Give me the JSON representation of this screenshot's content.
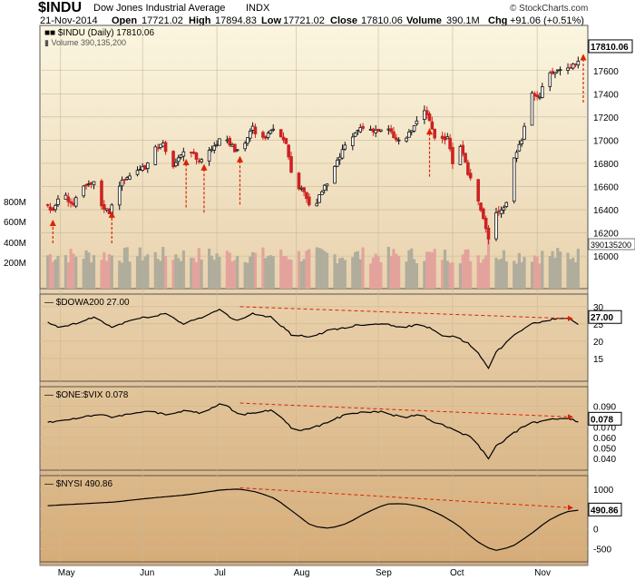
{
  "header": {
    "symbol": "$INDU",
    "name": "Dow Jones Industrial Average",
    "exchange": "INDX",
    "date": "21-Nov-2014",
    "open_label": "Open",
    "open": "17721.02",
    "high_label": "High",
    "high": "17894.83",
    "low_label": "Low",
    "low": "17721.02",
    "close_label": "Close",
    "close": "17810.06",
    "volume_label": "Volume",
    "volume": "390.1M",
    "chg_label": "Chg",
    "chg": "+91.06 (+0.51%)",
    "brand": "© StockCharts.com"
  },
  "colors": {
    "up": "#111111",
    "down": "#cc2222",
    "vol_up": "#b0ad9c",
    "vol_down": "#e3a39c",
    "arrow": "#dd2200",
    "panel_top": "#fbf6e0",
    "panel_bottom": "#d6ac78"
  },
  "chart_data": [
    {
      "type": "candlestick",
      "legend_label": "$INDU (Daily) 17810.06",
      "volume_legend": "Volume 390,135,200",
      "last_value_label": "17810.06",
      "last_volume_label": "390135200",
      "ylim": [
        15860,
        17880
      ],
      "y_ticks": [
        16000,
        16200,
        16400,
        16600,
        16800,
        17000,
        17200,
        17400,
        17600
      ],
      "volume_ticks": [
        "200M",
        "400M",
        "600M",
        "800M"
      ],
      "x_month_labels": [
        "May",
        "Jun",
        "Jul",
        "Aug",
        "Sep",
        "Oct",
        "Nov"
      ],
      "anchors": [
        [
          "Apr 24",
          16500
        ],
        [
          "Apr 28",
          16380
        ],
        [
          "May 1",
          16560
        ],
        [
          "May 6",
          16440
        ],
        [
          "May 9",
          16580
        ],
        [
          "May 14",
          16630
        ],
        [
          "May 16",
          16460
        ],
        [
          "May 20",
          16380
        ],
        [
          "May 23",
          16600
        ],
        [
          "May 29",
          16720
        ],
        [
          "Jun 3",
          16760
        ],
        [
          "Jun 6",
          16930
        ],
        [
          "Jun 10",
          16960
        ],
        [
          "Jun 13",
          16760
        ],
        [
          "Jun 18",
          16880
        ],
        [
          "Jun 20",
          16930
        ],
        [
          "Jun 24",
          16820
        ],
        [
          "Jun 26",
          16860
        ],
        [
          "Jul 1",
          16980
        ],
        [
          "Jul 3",
          17070
        ],
        [
          "Jul 8",
          16910
        ],
        [
          "Jul 11",
          16940
        ],
        [
          "Jul 15",
          17110
        ],
        [
          "Jul 17",
          16980
        ],
        [
          "Jul 21",
          17050
        ],
        [
          "Jul 24",
          17090
        ],
        [
          "Jul 28",
          16990
        ],
        [
          "Jul 31",
          16560
        ],
        [
          "Aug 4",
          16570
        ],
        [
          "Aug 7",
          16370
        ],
        [
          "Aug 11",
          16560
        ],
        [
          "Aug 14",
          16660
        ],
        [
          "Aug 19",
          16910
        ],
        [
          "Aug 22",
          17000
        ],
        [
          "Aug 26",
          17110
        ],
        [
          "Aug 29",
          17100
        ],
        [
          "Sep 3",
          17080
        ],
        [
          "Sep 5",
          17120
        ],
        [
          "Sep 9",
          17000
        ],
        [
          "Sep 12",
          16990
        ],
        [
          "Sep 16",
          17120
        ],
        [
          "Sep 19",
          17280
        ],
        [
          "Sep 22",
          17170
        ],
        [
          "Sep 25",
          16950
        ],
        [
          "Sep 29",
          17040
        ],
        [
          "Oct 1",
          16800
        ],
        [
          "Oct 3",
          17000
        ],
        [
          "Oct 7",
          16720
        ],
        [
          "Oct 10",
          16550
        ],
        [
          "Oct 13",
          16320
        ],
        [
          "Oct 15",
          16140
        ],
        [
          "Oct 17",
          16380
        ],
        [
          "Oct 20",
          16400
        ],
        [
          "Oct 22",
          16460
        ],
        [
          "Oct 24",
          16800
        ],
        [
          "Oct 28",
          17010
        ],
        [
          "Oct 31",
          17390
        ],
        [
          "Nov 4",
          17380
        ],
        [
          "Nov 7",
          17570
        ],
        [
          "Nov 12",
          17610
        ],
        [
          "Nov 14",
          17630
        ],
        [
          "Nov 17",
          17650
        ],
        [
          "Nov 19",
          17680
        ],
        [
          "Nov 20",
          17720
        ],
        [
          "Nov 21",
          17810
        ]
      ],
      "arrows_at": [
        "Apr 28",
        "May 21",
        "Jun 19",
        "Jun 26",
        "Jul 10",
        "Sep 22",
        "Nov 21"
      ]
    },
    {
      "type": "line",
      "legend_label": "$DOWA200 27.00",
      "last_value_label": "27.00",
      "ylim": [
        10,
        31
      ],
      "y_ticks": [
        15,
        20,
        25,
        30
      ],
      "anchors": [
        [
          "Apr 24",
          26
        ],
        [
          "Apr 30",
          24
        ],
        [
          "May 7",
          25
        ],
        [
          "May 14",
          27
        ],
        [
          "May 21",
          24
        ],
        [
          "May 28",
          26
        ],
        [
          "Jun 4",
          27
        ],
        [
          "Jun 11",
          28
        ],
        [
          "Jun 18",
          25
        ],
        [
          "Jun 25",
          27
        ],
        [
          "Jul 2",
          29
        ],
        [
          "Jul 8",
          26
        ],
        [
          "Jul 15",
          28
        ],
        [
          "Jul 22",
          27
        ],
        [
          "Jul 30",
          22
        ],
        [
          "Aug 6",
          21
        ],
        [
          "Aug 13",
          23
        ],
        [
          "Aug 20",
          24
        ],
        [
          "Aug 28",
          25
        ],
        [
          "Sep 5",
          25
        ],
        [
          "Sep 12",
          24
        ],
        [
          "Sep 19",
          25
        ],
        [
          "Sep 26",
          22
        ],
        [
          "Oct 3",
          21
        ],
        [
          "Oct 10",
          18
        ],
        [
          "Oct 15",
          12
        ],
        [
          "Oct 17",
          16
        ],
        [
          "Oct 24",
          21
        ],
        [
          "Oct 31",
          25
        ],
        [
          "Nov 7",
          26
        ],
        [
          "Nov 14",
          27
        ],
        [
          "Nov 19",
          25
        ],
        [
          "Nov 21",
          27
        ]
      ],
      "trend": [
        [
          "Jul 10",
          30
        ],
        [
          "Nov 21",
          26
        ]
      ]
    },
    {
      "type": "line",
      "legend_label": "$ONE:$VIX 0.078",
      "last_value_label": "0.078",
      "ylim": [
        0.034,
        0.1
      ],
      "y_ticks": [
        0.04,
        0.05,
        0.06,
        0.07,
        0.09
      ],
      "anchors": [
        [
          "Apr 24",
          0.074
        ],
        [
          "May 1",
          0.076
        ],
        [
          "May 8",
          0.079
        ],
        [
          "May 15",
          0.082
        ],
        [
          "May 22",
          0.079
        ],
        [
          "May 29",
          0.084
        ],
        [
          "Jun 5",
          0.085
        ],
        [
          "Jun 12",
          0.081
        ],
        [
          "Jun 19",
          0.086
        ],
        [
          "Jun 26",
          0.083
        ],
        [
          "Jul 3",
          0.094
        ],
        [
          "Jul 10",
          0.081
        ],
        [
          "Jul 17",
          0.085
        ],
        [
          "Jul 24",
          0.086
        ],
        [
          "Jul 31",
          0.066
        ],
        [
          "Aug 7",
          0.069
        ],
        [
          "Aug 14",
          0.075
        ],
        [
          "Aug 21",
          0.083
        ],
        [
          "Aug 28",
          0.084
        ],
        [
          "Sep 4",
          0.085
        ],
        [
          "Sep 11",
          0.079
        ],
        [
          "Sep 18",
          0.082
        ],
        [
          "Sep 25",
          0.074
        ],
        [
          "Oct 2",
          0.067
        ],
        [
          "Oct 9",
          0.059
        ],
        [
          "Oct 15",
          0.04
        ],
        [
          "Oct 17",
          0.05
        ],
        [
          "Oct 24",
          0.063
        ],
        [
          "Oct 31",
          0.074
        ],
        [
          "Nov 7",
          0.076
        ],
        [
          "Nov 14",
          0.08
        ],
        [
          "Nov 19",
          0.075
        ],
        [
          "Nov 21",
          0.078
        ]
      ],
      "trend": [
        [
          "Jul 10",
          0.093
        ],
        [
          "Nov 21",
          0.078
        ]
      ]
    },
    {
      "type": "line",
      "legend_label": "$NYSI 490.86",
      "last_value_label": "490.86",
      "ylim": [
        -700,
        1120
      ],
      "y_ticks": [
        -500,
        0,
        500,
        1000
      ],
      "anchors": [
        [
          "Apr 24",
          580
        ],
        [
          "May 8",
          630
        ],
        [
          "May 22",
          680
        ],
        [
          "Jun 5",
          780
        ],
        [
          "Jun 19",
          860
        ],
        [
          "Jul 3",
          990
        ],
        [
          "Jul 10",
          1010
        ],
        [
          "Jul 17",
          930
        ],
        [
          "Jul 24",
          760
        ],
        [
          "Jul 31",
          420
        ],
        [
          "Aug 7",
          70
        ],
        [
          "Aug 14",
          10
        ],
        [
          "Aug 21",
          140
        ],
        [
          "Aug 28",
          400
        ],
        [
          "Sep 5",
          630
        ],
        [
          "Sep 12",
          640
        ],
        [
          "Sep 19",
          560
        ],
        [
          "Sep 26",
          370
        ],
        [
          "Oct 3",
          100
        ],
        [
          "Oct 10",
          -300
        ],
        [
          "Oct 17",
          -560
        ],
        [
          "Oct 24",
          -460
        ],
        [
          "Oct 31",
          -160
        ],
        [
          "Nov 7",
          200
        ],
        [
          "Nov 14",
          430
        ],
        [
          "Nov 21",
          490
        ]
      ],
      "trend": [
        [
          "Jul 10",
          1040
        ],
        [
          "Nov 21",
          490
        ]
      ]
    }
  ]
}
